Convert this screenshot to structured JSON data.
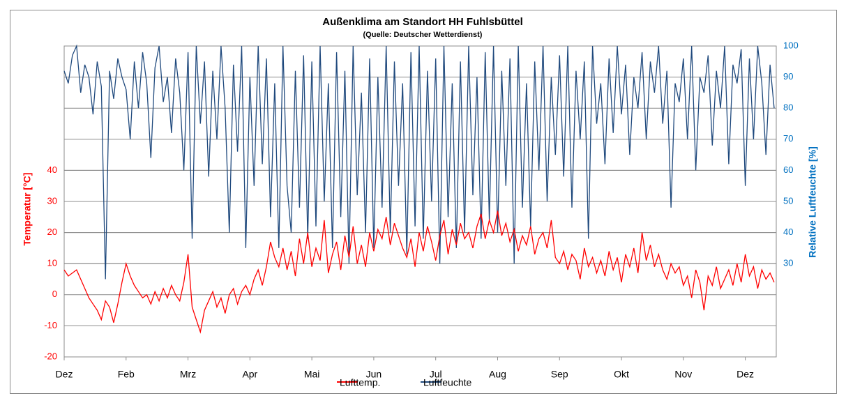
{
  "chart_data": {
    "type": "line",
    "title": "Außenklima am Standort HH Fuhlsbüttel",
    "subtitle": "(Quelle: Deutscher Wetterdienst)",
    "ylabel": "Temperatur [°C]",
    "y2label": "Relative Luftfeuchte [%]",
    "xlim": [
      0,
      345
    ],
    "xticks": [
      {
        "value": 0,
        "label": "Dez"
      },
      {
        "value": 30,
        "label": "Feb"
      },
      {
        "value": 60,
        "label": "Mrz"
      },
      {
        "value": 90,
        "label": "Apr"
      },
      {
        "value": 120,
        "label": "Mai"
      },
      {
        "value": 150,
        "label": "Jun"
      },
      {
        "value": 180,
        "label": "Jul"
      },
      {
        "value": 210,
        "label": "Aug"
      },
      {
        "value": 240,
        "label": "Sep"
      },
      {
        "value": 270,
        "label": "Okt"
      },
      {
        "value": 300,
        "label": "Nov"
      },
      {
        "value": 330,
        "label": "Dez"
      }
    ],
    "ylim": [
      -20,
      80
    ],
    "yticks": [
      -20,
      -10,
      0,
      10,
      20,
      30,
      40
    ],
    "y2lim": [
      0,
      100
    ],
    "y2ticks": [
      30,
      40,
      50,
      60,
      70,
      80,
      90,
      100
    ],
    "grid": true,
    "legend": "bottom",
    "x": [
      0,
      2,
      4,
      6,
      8,
      10,
      12,
      14,
      16,
      18,
      20,
      22,
      24,
      26,
      28,
      30,
      32,
      34,
      36,
      38,
      40,
      42,
      44,
      46,
      48,
      50,
      52,
      54,
      56,
      58,
      60,
      62,
      64,
      66,
      68,
      70,
      72,
      74,
      76,
      78,
      80,
      82,
      84,
      86,
      88,
      90,
      92,
      94,
      96,
      98,
      100,
      102,
      104,
      106,
      108,
      110,
      112,
      114,
      116,
      118,
      120,
      122,
      124,
      126,
      128,
      130,
      132,
      134,
      136,
      138,
      140,
      142,
      144,
      146,
      148,
      150,
      152,
      154,
      156,
      158,
      160,
      162,
      164,
      166,
      168,
      170,
      172,
      174,
      176,
      178,
      180,
      182,
      184,
      186,
      188,
      190,
      192,
      194,
      196,
      198,
      200,
      202,
      204,
      206,
      208,
      210,
      212,
      214,
      216,
      218,
      220,
      222,
      224,
      226,
      228,
      230,
      232,
      234,
      236,
      238,
      240,
      242,
      244,
      246,
      248,
      250,
      252,
      254,
      256,
      258,
      260,
      262,
      264,
      266,
      268,
      270,
      272,
      274,
      276,
      278,
      280,
      282,
      284,
      286,
      288,
      290,
      292,
      294,
      296,
      298,
      300,
      302,
      304,
      306,
      308,
      310,
      312,
      314,
      316,
      318,
      320,
      322,
      324,
      326,
      328,
      330,
      332,
      334,
      336,
      338,
      340,
      342,
      344
    ],
    "series": [
      {
        "name": "Lufttemp.",
        "color": "#ff0000",
        "axis": "y",
        "values": [
          8,
          6,
          7,
          8,
          5,
          2,
          -1,
          -3,
          -5,
          -8,
          -2,
          -4,
          -9,
          -3,
          4,
          10,
          6,
          3,
          1,
          -1,
          0,
          -3,
          1,
          -2,
          2,
          -1,
          3,
          0,
          -2,
          4,
          13,
          -4,
          -8,
          -12,
          -5,
          -2,
          1,
          -4,
          -1,
          -6,
          0,
          2,
          -3,
          1,
          3,
          0,
          5,
          8,
          3,
          9,
          17,
          12,
          9,
          15,
          8,
          14,
          6,
          18,
          10,
          20,
          9,
          15,
          11,
          24,
          7,
          13,
          17,
          8,
          19,
          12,
          22,
          10,
          16,
          9,
          20,
          14,
          21,
          18,
          25,
          16,
          23,
          19,
          15,
          12,
          18,
          9,
          20,
          14,
          22,
          17,
          11,
          19,
          24,
          13,
          21,
          16,
          23,
          18,
          20,
          15,
          22,
          26,
          18,
          24,
          20,
          27,
          19,
          23,
          17,
          21,
          14,
          19,
          16,
          22,
          13,
          18,
          20,
          15,
          24,
          12,
          10,
          14,
          8,
          13,
          11,
          5,
          15,
          9,
          12,
          7,
          11,
          6,
          14,
          8,
          12,
          4,
          13,
          9,
          15,
          7,
          20,
          11,
          16,
          9,
          13,
          8,
          5,
          10,
          7,
          9,
          3,
          6,
          -1,
          8,
          4,
          -5,
          6,
          3,
          9,
          2,
          5,
          8,
          3,
          10,
          4,
          13,
          6,
          9,
          2,
          8,
          5,
          7,
          4
        ]
      },
      {
        "name": "Luftfeuchte",
        "color": "#1f497d",
        "axis": "y2",
        "values": [
          92,
          88,
          97,
          100,
          85,
          94,
          90,
          78,
          95,
          87,
          25,
          92,
          83,
          96,
          90,
          86,
          70,
          95,
          80,
          98,
          88,
          64,
          93,
          100,
          82,
          90,
          72,
          96,
          85,
          60,
          98,
          38,
          100,
          75,
          95,
          58,
          92,
          70,
          100,
          80,
          40,
          94,
          66,
          100,
          35,
          90,
          55,
          100,
          62,
          96,
          45,
          88,
          35,
          100,
          55,
          40,
          92,
          48,
          97,
          38,
          95,
          42,
          100,
          50,
          88,
          35,
          98,
          45,
          92,
          30,
          100,
          52,
          85,
          40,
          96,
          35,
          90,
          48,
          100,
          40,
          95,
          55,
          88,
          33,
          98,
          42,
          100,
          38,
          92,
          50,
          96,
          30,
          100,
          45,
          88,
          35,
          95,
          40,
          100,
          52,
          90,
          38,
          98,
          44,
          100,
          40,
          92,
          55,
          96,
          30,
          100,
          48,
          88,
          42,
          95,
          60,
          100,
          50,
          90,
          65,
          97,
          58,
          100,
          48,
          92,
          70,
          95,
          38,
          100,
          75,
          88,
          62,
          96,
          72,
          100,
          78,
          94,
          65,
          90,
          80,
          98,
          70,
          95,
          85,
          100,
          75,
          92,
          48,
          88,
          82,
          96,
          70,
          100,
          60,
          90,
          85,
          97,
          68,
          92,
          80,
          100,
          62,
          94,
          88,
          99,
          55,
          96,
          70,
          100,
          88,
          65,
          94,
          80
        ]
      }
    ]
  }
}
